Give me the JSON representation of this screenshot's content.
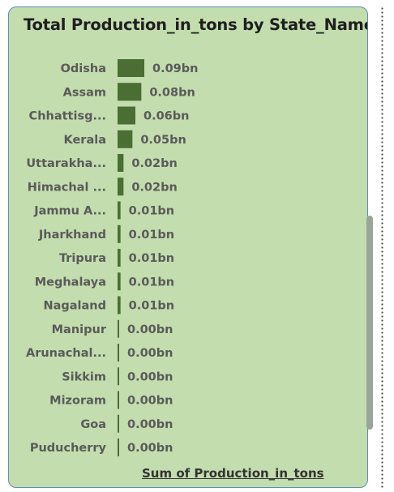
{
  "chart_data": {
    "type": "bar",
    "orientation": "horizontal",
    "title": "Total Production_in_tons by State_Name",
    "xlabel": "Sum of Production_in_tons",
    "categories": [
      "Odisha",
      "Assam",
      "Chhattisg...",
      "Kerala",
      "Uttarakha...",
      "Himachal ...",
      "Jammu A...",
      "Jharkhand",
      "Tripura",
      "Meghalaya",
      "Nagaland",
      "Manipur",
      "Arunachal...",
      "Sikkim",
      "Mizoram",
      "Goa",
      "Puducherry"
    ],
    "values": [
      0.09,
      0.08,
      0.06,
      0.05,
      0.02,
      0.02,
      0.01,
      0.01,
      0.01,
      0.01,
      0.01,
      0.0,
      0.0,
      0.0,
      0.0,
      0.0,
      0.0
    ],
    "value_unit": "bn",
    "data_labels": [
      "0.09bn",
      "0.08bn",
      "0.06bn",
      "0.05bn",
      "0.02bn",
      "0.02bn",
      "0.01bn",
      "0.01bn",
      "0.01bn",
      "0.01bn",
      "0.01bn",
      "0.00bn",
      "0.00bn",
      "0.00bn",
      "0.00bn",
      "0.00bn",
      "0.00bn"
    ],
    "xlim": [
      0,
      0.09
    ],
    "bar_color": "#4a6e34",
    "background_color": "#c3ddae"
  }
}
